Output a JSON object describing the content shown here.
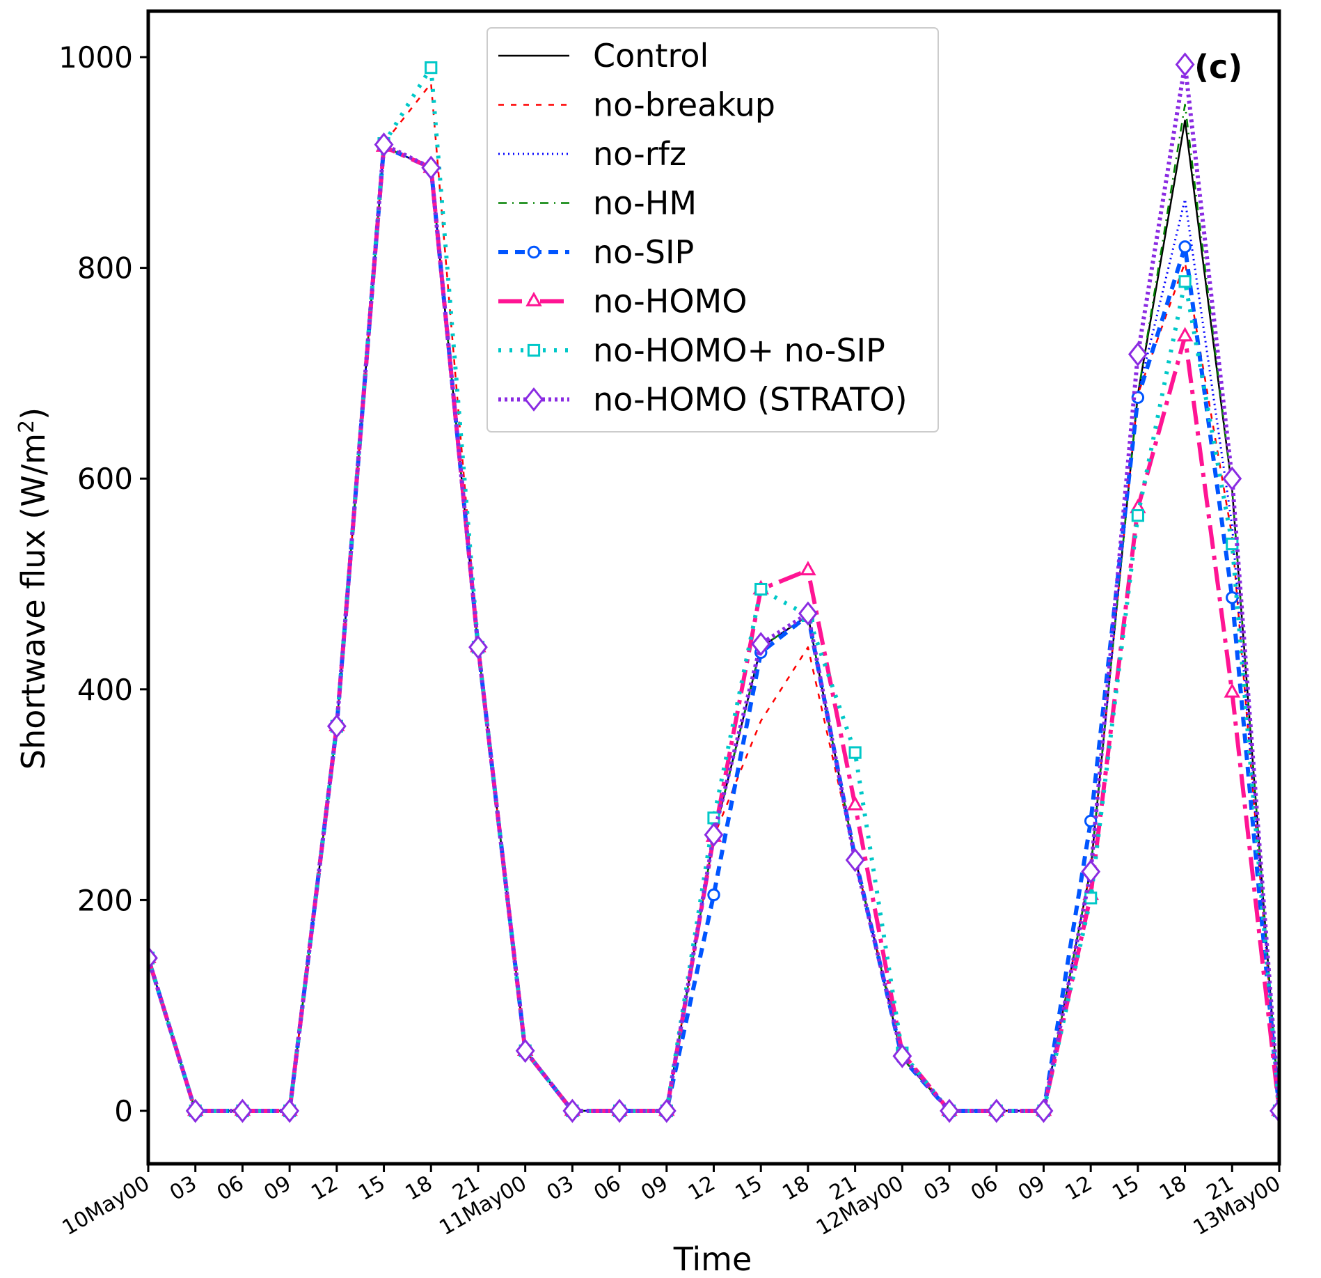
{
  "chart_data": {
    "type": "line",
    "panel_label": "(c)",
    "xlabel": "Time",
    "ylabel": "Shortwave flux (W/m",
    "ylabel_sup": "2",
    "ylabel_close": ")",
    "ylim": [
      -50,
      1045
    ],
    "xlim": [
      0,
      72
    ],
    "yticks": [
      0,
      200,
      400,
      600,
      800,
      1000
    ],
    "xticks": [
      {
        "hour": 0,
        "label": "10May00"
      },
      {
        "hour": 3,
        "label": "03"
      },
      {
        "hour": 6,
        "label": "06"
      },
      {
        "hour": 9,
        "label": "09"
      },
      {
        "hour": 12,
        "label": "12"
      },
      {
        "hour": 15,
        "label": "15"
      },
      {
        "hour": 18,
        "label": "18"
      },
      {
        "hour": 21,
        "label": "21"
      },
      {
        "hour": 24,
        "label": "11May00"
      },
      {
        "hour": 27,
        "label": "03"
      },
      {
        "hour": 30,
        "label": "06"
      },
      {
        "hour": 33,
        "label": "09"
      },
      {
        "hour": 36,
        "label": "12"
      },
      {
        "hour": 39,
        "label": "15"
      },
      {
        "hour": 42,
        "label": "18"
      },
      {
        "hour": 45,
        "label": "21"
      },
      {
        "hour": 48,
        "label": "12May00"
      },
      {
        "hour": 51,
        "label": "03"
      },
      {
        "hour": 54,
        "label": "06"
      },
      {
        "hour": 57,
        "label": "09"
      },
      {
        "hour": 60,
        "label": "12"
      },
      {
        "hour": 63,
        "label": "15"
      },
      {
        "hour": 66,
        "label": "18"
      },
      {
        "hour": 69,
        "label": "21"
      },
      {
        "hour": 72,
        "label": "13May00"
      }
    ],
    "legend_position": "upper-center",
    "x": [
      0,
      3,
      6,
      9,
      12,
      15,
      18,
      21,
      24,
      27,
      30,
      33,
      36,
      39,
      42,
      45,
      48,
      51,
      54,
      57,
      60,
      63,
      66,
      69,
      72
    ],
    "series": [
      {
        "name": "Control",
        "color": "#000000",
        "dash": "",
        "width": 2.5,
        "marker": "none",
        "values": [
          145,
          0,
          0,
          0,
          365,
          915,
          895,
          440,
          57,
          0,
          0,
          0,
          260,
          440,
          470,
          240,
          50,
          0,
          0,
          0,
          230,
          680,
          940,
          590,
          0
        ]
      },
      {
        "name": "no-breakup",
        "color": "#ff0000",
        "dash": "8,10",
        "width": 2.5,
        "marker": "none",
        "values": [
          145,
          0,
          0,
          0,
          365,
          918,
          975,
          440,
          57,
          0,
          0,
          0,
          260,
          370,
          440,
          240,
          55,
          0,
          0,
          0,
          230,
          680,
          805,
          545,
          0
        ]
      },
      {
        "name": "no-rfz",
        "color": "#0000ff",
        "dash": "2,5",
        "width": 3,
        "marker": "none",
        "values": [
          145,
          0,
          0,
          0,
          365,
          915,
          895,
          440,
          57,
          0,
          0,
          0,
          260,
          440,
          470,
          240,
          50,
          0,
          0,
          0,
          230,
          680,
          865,
          555,
          0
        ]
      },
      {
        "name": "no-HM",
        "color": "#008000",
        "dash": "12,8,2,8",
        "width": 2.5,
        "marker": "none",
        "values": [
          145,
          0,
          0,
          0,
          365,
          915,
          895,
          440,
          57,
          0,
          0,
          0,
          260,
          440,
          470,
          240,
          50,
          0,
          0,
          0,
          230,
          680,
          955,
          590,
          0
        ]
      },
      {
        "name": "no-SIP",
        "color": "#0055ff",
        "dash": "14,10",
        "width": 6,
        "marker": "circle",
        "values": [
          145,
          0,
          0,
          0,
          365,
          915,
          895,
          440,
          57,
          0,
          0,
          0,
          205,
          435,
          470,
          240,
          50,
          0,
          0,
          0,
          275,
          677,
          820,
          487,
          0
        ]
      },
      {
        "name": "no-HOMO",
        "color": "#ff1493",
        "dash": "34,10,6,10",
        "width": 6,
        "marker": "triangle",
        "values": [
          145,
          0,
          0,
          0,
          365,
          915,
          895,
          440,
          57,
          0,
          0,
          0,
          260,
          495,
          513,
          290,
          55,
          0,
          0,
          0,
          205,
          572,
          735,
          397,
          0
        ]
      },
      {
        "name": "no-HOMO+ no-SIP",
        "color": "#00c8c8",
        "dash": "4,12",
        "width": 6,
        "marker": "square",
        "values": [
          145,
          0,
          0,
          0,
          365,
          918,
          990,
          440,
          57,
          0,
          0,
          0,
          278,
          495,
          470,
          340,
          55,
          0,
          0,
          0,
          202,
          565,
          787,
          538,
          0
        ]
      },
      {
        "name": "no-HOMO (STRATO)",
        "color": "#8a2be2",
        "dash": "4,5",
        "width": 6,
        "marker": "diamond",
        "values": [
          145,
          0,
          0,
          0,
          365,
          917,
          895,
          440,
          57,
          0,
          0,
          0,
          262,
          443,
          472,
          238,
          52,
          0,
          0,
          0,
          227,
          718,
          993,
          600,
          0
        ]
      }
    ]
  }
}
